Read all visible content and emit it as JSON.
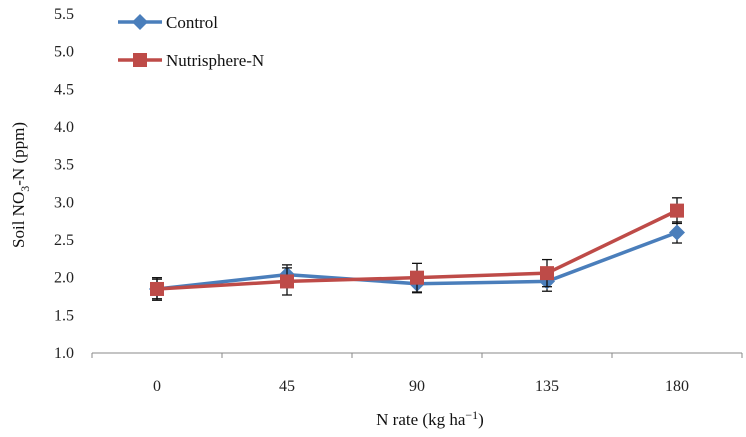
{
  "chart_data": {
    "type": "line",
    "title": "",
    "xlabel": {
      "main": "N rate (kg ha",
      "sup": "−1",
      "tail": ")"
    },
    "ylabel": {
      "main": "Soil NO",
      "sub": "3",
      "tail": "-N (ppm)"
    },
    "x": [
      "0",
      "45",
      "90",
      "135",
      "180"
    ],
    "ylim": [
      1.0,
      5.5
    ],
    "yticks": [
      "1.0",
      "1.5",
      "2.0",
      "2.5",
      "3.0",
      "3.5",
      "4.0",
      "4.5",
      "5.0",
      "5.5"
    ],
    "grid": false,
    "legend": "top-left",
    "series": [
      {
        "name": "Control",
        "color": "#4a7ebb",
        "marker": "diamond",
        "values": [
          1.85,
          2.04,
          1.92,
          1.95,
          2.6
        ],
        "err": [
          0.15,
          0.13,
          0.12,
          0.13,
          0.14
        ]
      },
      {
        "name": "Nutrisphere-N",
        "color": "#be4b48",
        "marker": "square",
        "values": [
          1.85,
          1.95,
          2.0,
          2.06,
          2.89
        ],
        "err": [
          0.13,
          0.18,
          0.19,
          0.18,
          0.17
        ]
      }
    ]
  }
}
